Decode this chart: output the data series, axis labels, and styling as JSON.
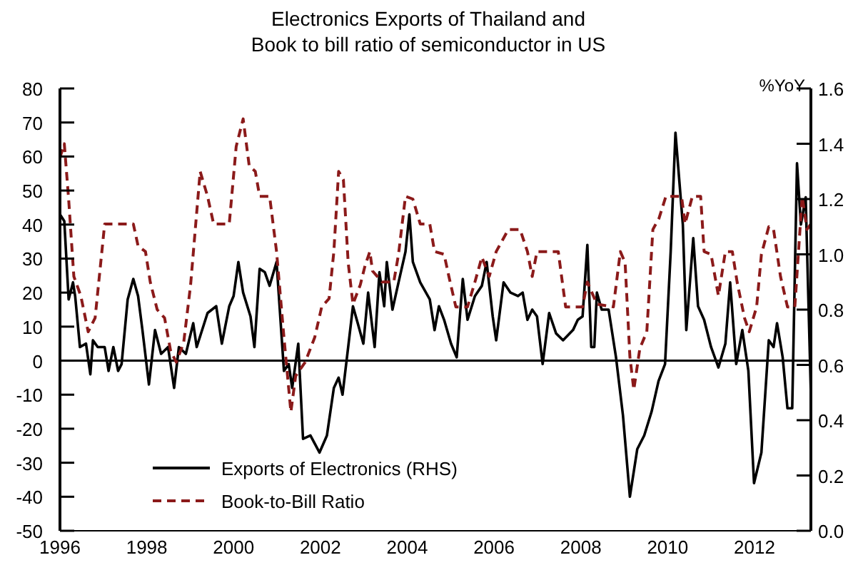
{
  "chart_data": {
    "type": "line",
    "title": "Electronics Exports of Thailand and\nBook to bill ratio of semiconductor in US",
    "y2label": "%YoY",
    "xlim": [
      1996,
      2013.3
    ],
    "xticks": [
      1996,
      1998,
      2000,
      2002,
      2004,
      2006,
      2008,
      2010,
      2012
    ],
    "ylim": [
      -50,
      80
    ],
    "yticks": [
      -50,
      -40,
      -30,
      -20,
      -10,
      0,
      10,
      20,
      30,
      40,
      50,
      60,
      70,
      80
    ],
    "y2lim": [
      0,
      1.6
    ],
    "y2ticks": [
      {
        "value": 0,
        "label": "0.0"
      },
      0.2,
      0.4,
      0.6,
      0.8,
      {
        "value": 1,
        "label": "1.0"
      },
      1.2,
      1.4,
      1.6
    ],
    "grid": false,
    "legend": "bottom left",
    "marker": "none",
    "ref_lines": [
      {
        "axis": "y",
        "value": 0,
        "color": "#000000",
        "line_style": "solid"
      }
    ],
    "series": [
      {
        "name": "Exports of Electronics (RHS)",
        "color": "#000000",
        "line_style": "solid",
        "x": [
          1996.0,
          1996.1,
          1996.2,
          1996.3,
          1996.35,
          1996.46,
          1996.6,
          1996.7,
          1996.76,
          1996.87,
          1997.03,
          1997.12,
          1997.23,
          1997.34,
          1997.42,
          1997.56,
          1997.69,
          1997.8,
          1997.9,
          1998.05,
          1998.19,
          1998.33,
          1998.49,
          1998.63,
          1998.74,
          1998.9,
          1999.07,
          1999.15,
          1999.4,
          1999.5,
          1999.6,
          1999.73,
          1999.9,
          2000.0,
          2000.11,
          2000.22,
          2000.39,
          2000.48,
          2000.6,
          2000.72,
          2000.83,
          2000.99,
          2001.16,
          2001.27,
          2001.35,
          2001.49,
          2001.6,
          2001.77,
          2001.98,
          2002.15,
          2002.31,
          2002.42,
          2002.51,
          2002.64,
          2002.75,
          2002.86,
          2002.99,
          2003.1,
          2003.25,
          2003.36,
          2003.47,
          2003.53,
          2003.66,
          2003.8,
          2003.96,
          2004.05,
          2004.13,
          2004.3,
          2004.52,
          2004.63,
          2004.73,
          2004.85,
          2005.01,
          2005.14,
          2005.28,
          2005.39,
          2005.56,
          2005.72,
          2005.83,
          2005.97,
          2006.05,
          2006.22,
          2006.38,
          2006.55,
          2006.66,
          2006.77,
          2006.88,
          2006.99,
          2007.12,
          2007.27,
          2007.43,
          2007.59,
          2007.82,
          2007.93,
          2008.04,
          2008.15,
          2008.24,
          2008.31,
          2008.37,
          2008.48,
          2008.64,
          2008.81,
          2008.97,
          2009.13,
          2009.3,
          2009.46,
          2009.63,
          2009.79,
          2009.94,
          2010.07,
          2010.18,
          2010.35,
          2010.43,
          2010.59,
          2010.7,
          2010.84,
          2011.0,
          2011.17,
          2011.33,
          2011.44,
          2011.58,
          2011.72,
          2011.86,
          2011.99,
          2012.16,
          2012.33,
          2012.44,
          2012.52,
          2012.65,
          2012.76,
          2012.87,
          2012.98,
          2013.07,
          2013.18,
          2013.3
        ],
        "values": [
          43,
          41,
          18,
          23,
          19,
          4,
          5,
          -4,
          6,
          4,
          4,
          -3,
          4,
          -3,
          -1,
          18,
          24,
          19,
          9,
          -7,
          9,
          2,
          4,
          -8,
          4,
          2,
          11,
          4,
          14,
          15,
          16,
          5,
          16,
          19,
          29,
          20,
          13,
          4,
          27,
          26,
          22,
          29,
          -3,
          -1,
          -8,
          5,
          -23,
          -22,
          -27,
          -22,
          -8,
          -5,
          -10,
          4,
          16,
          11,
          5,
          20,
          4,
          26,
          16,
          29,
          15,
          23,
          32,
          43,
          29,
          23,
          18,
          9,
          16,
          12,
          5,
          1,
          24,
          12,
          19,
          22,
          29,
          13,
          6,
          23,
          20,
          19,
          20,
          12,
          15,
          13,
          -1,
          14,
          8,
          6,
          9,
          12,
          13,
          34,
          4,
          4,
          20,
          15,
          15,
          1,
          -16,
          -40,
          -26,
          -22,
          -15,
          -6,
          -1,
          32,
          67,
          40,
          9,
          36,
          16,
          12,
          4,
          -2,
          5,
          23,
          -1,
          9,
          -3,
          -36,
          -27,
          6,
          4,
          11,
          1,
          -14,
          -14,
          58,
          40,
          48,
          -10
        ]
      },
      {
        "name": "Book-to-Bill Ratio",
        "color": "#8b1a1a",
        "line_style": "dashed",
        "axis": "y2",
        "x": [
          1996.0,
          1996.1,
          1996.2,
          1996.32,
          1996.48,
          1996.65,
          1996.81,
          1997.03,
          1997.69,
          1997.8,
          1997.97,
          1998.08,
          1998.24,
          1998.41,
          1998.55,
          1998.68,
          1998.85,
          1999.01,
          1999.23,
          1999.4,
          1999.54,
          1999.9,
          2000.06,
          2000.22,
          2000.36,
          2000.5,
          2000.6,
          2000.83,
          2000.99,
          2001.16,
          2001.32,
          2001.43,
          2001.65,
          2001.87,
          2002.03,
          2002.2,
          2002.31,
          2002.42,
          2002.53,
          2002.64,
          2002.75,
          2002.92,
          2003.03,
          2003.14,
          2003.2,
          2003.42,
          2003.69,
          2003.8,
          2003.96,
          2004.13,
          2004.3,
          2004.52,
          2004.63,
          2004.85,
          2004.96,
          2005.12,
          2005.39,
          2005.56,
          2005.72,
          2005.89,
          2006.05,
          2006.33,
          2006.6,
          2006.77,
          2006.88,
          2006.99,
          2007.48,
          2007.65,
          2008.04,
          2008.15,
          2008.37,
          2008.75,
          2008.91,
          2009.02,
          2009.13,
          2009.22,
          2009.36,
          2009.52,
          2009.66,
          2009.8,
          2009.96,
          2010.13,
          2010.32,
          2010.4,
          2010.57,
          2010.76,
          2010.84,
          2011.0,
          2011.17,
          2011.33,
          2011.49,
          2011.6,
          2011.77,
          2011.88,
          2012.05,
          2012.16,
          2012.33,
          2012.44,
          2012.6,
          2012.76,
          2012.93,
          2013.1,
          2013.21,
          2013.3
        ],
        "values": [
          1.35,
          1.4,
          1.2,
          0.92,
          0.85,
          0.72,
          0.77,
          1.11,
          1.11,
          1.03,
          1.01,
          0.9,
          0.8,
          0.77,
          0.65,
          0.61,
          0.68,
          0.89,
          1.3,
          1.21,
          1.11,
          1.11,
          1.39,
          1.49,
          1.32,
          1.3,
          1.21,
          1.21,
          1.01,
          0.7,
          0.43,
          0.56,
          0.61,
          0.7,
          0.81,
          0.84,
          1.01,
          1.3,
          1.27,
          0.97,
          0.82,
          0.89,
          0.96,
          1.01,
          0.94,
          0.9,
          0.9,
          1.0,
          1.21,
          1.2,
          1.11,
          1.11,
          1.01,
          1.0,
          0.92,
          0.81,
          0.81,
          0.9,
          0.99,
          0.92,
          1.01,
          1.09,
          1.09,
          1.01,
          0.92,
          1.01,
          1.01,
          0.81,
          0.81,
          0.9,
          0.82,
          0.81,
          1.01,
          0.97,
          0.63,
          0.51,
          0.66,
          0.72,
          1.09,
          1.13,
          1.21,
          1.21,
          1.21,
          1.11,
          1.21,
          1.21,
          1.01,
          1.0,
          0.85,
          1.01,
          1.01,
          0.9,
          0.77,
          0.72,
          0.81,
          1.0,
          1.1,
          1.09,
          0.92,
          0.81,
          0.81,
          1.21,
          1.09,
          1.11
        ]
      }
    ]
  }
}
